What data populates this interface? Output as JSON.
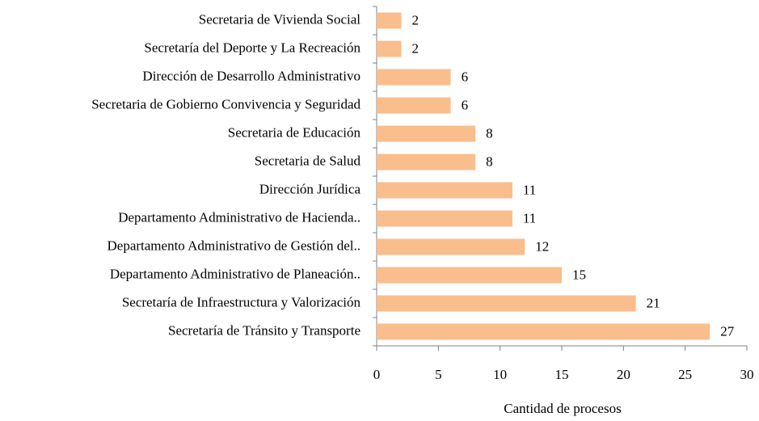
{
  "chart_data": {
    "type": "bar",
    "orientation": "horizontal",
    "x_label": "Cantidad de procesos",
    "categories": [
      "Secretaria de Vivienda Social",
      "Secretaría del Deporte y La Recreación",
      "Dirección de Desarrollo Administrativo",
      "Secretaria de Gobierno Convivencia y Seguridad",
      "Secretaria de Educación",
      "Secretaria de Salud",
      "Dirección Jurídica",
      "Departamento Administrativo de Hacienda..",
      "Departamento Administrativo de Gestión del..",
      "Departamento Administrativo de Planeación..",
      "Secretaría de Infraestructura y Valorización",
      "Secretaría de Tránsito y Transporte"
    ],
    "values": [
      2,
      2,
      6,
      6,
      8,
      8,
      11,
      11,
      12,
      15,
      21,
      27
    ],
    "color": "#f9be8c",
    "xlim": [
      0,
      30
    ],
    "xticks": [
      0,
      5,
      10,
      15,
      20,
      25,
      30
    ],
    "grid": false
  }
}
